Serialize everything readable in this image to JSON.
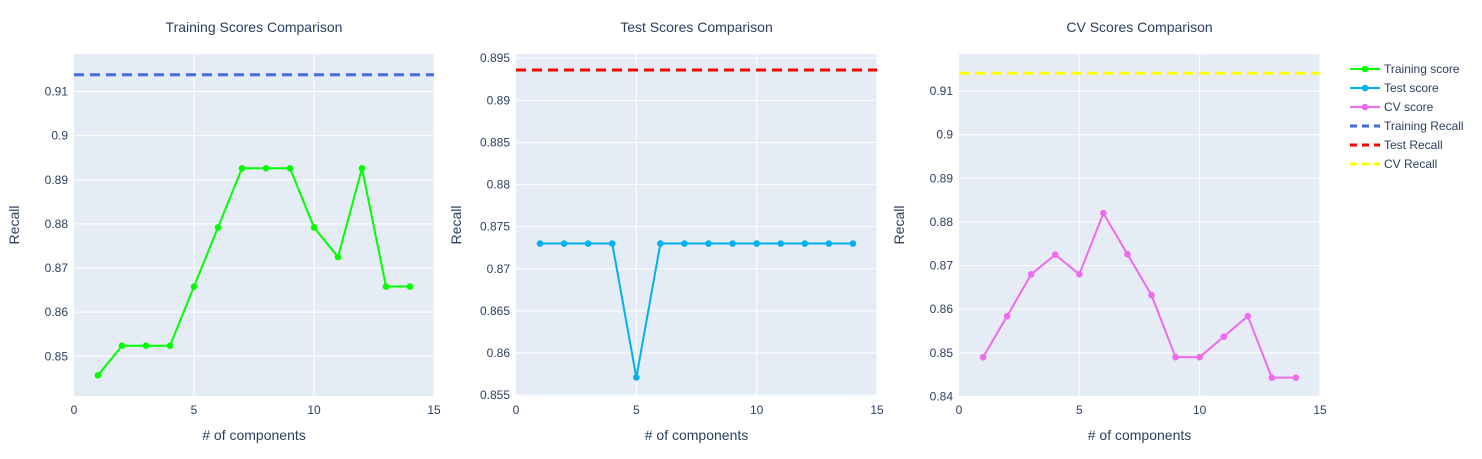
{
  "chart_data": [
    {
      "type": "line",
      "title": "Training Scores Comparison",
      "xlabel": "# of components",
      "ylabel": "Recall",
      "xlim": [
        0,
        15
      ],
      "ylim": [
        0.841,
        0.9185
      ],
      "x_ticks": [
        0,
        5,
        10,
        15
      ],
      "y_ticks": [
        0.85,
        0.86,
        0.87,
        0.88,
        0.89,
        0.9,
        0.91
      ],
      "y_tick_labels": [
        "0.85",
        "0.86",
        "0.87",
        "0.88",
        "0.89",
        "0.9",
        "0.91"
      ],
      "grid": true,
      "series": [
        {
          "name": "Training score",
          "color": "#00ff00",
          "mode": "lines+markers",
          "x": [
            1,
            2,
            3,
            4,
            5,
            6,
            7,
            8,
            9,
            10,
            11,
            12,
            13,
            14
          ],
          "y": [
            0.8457,
            0.8524,
            0.8524,
            0.8524,
            0.8658,
            0.8792,
            0.8926,
            0.8926,
            0.8926,
            0.8792,
            0.8725,
            0.8926,
            0.8658,
            0.8658
          ]
        }
      ],
      "reference": {
        "name": "Training Recall",
        "value": 0.9138,
        "color": "#4169e1",
        "dash": "dash"
      }
    },
    {
      "type": "line",
      "title": "Test Scores Comparison",
      "xlabel": "# of components",
      "ylabel": "Recall",
      "xlim": [
        0,
        15
      ],
      "ylim": [
        0.8549,
        0.8955
      ],
      "x_ticks": [
        0,
        5,
        10,
        15
      ],
      "y_ticks": [
        0.855,
        0.86,
        0.865,
        0.87,
        0.875,
        0.88,
        0.885,
        0.89,
        0.895
      ],
      "y_tick_labels": [
        "0.855",
        "0.86",
        "0.865",
        "0.87",
        "0.875",
        "0.88",
        "0.885",
        "0.89",
        "0.895"
      ],
      "grid": true,
      "series": [
        {
          "name": "Test score",
          "color": "#00b0f0",
          "mode": "lines+markers",
          "x": [
            1,
            2,
            3,
            4,
            5,
            6,
            7,
            8,
            9,
            10,
            11,
            12,
            13,
            14
          ],
          "y": [
            0.873,
            0.873,
            0.873,
            0.873,
            0.8571,
            0.873,
            0.873,
            0.873,
            0.873,
            0.873,
            0.873,
            0.873,
            0.873,
            0.873
          ]
        }
      ],
      "reference": {
        "name": "Test Recall",
        "value": 0.8936,
        "color": "#ff0000",
        "dash": "dash"
      }
    },
    {
      "type": "line",
      "title": "CV Scores Comparison",
      "xlabel": "# of components",
      "ylabel": "Recall",
      "xlim": [
        0,
        15
      ],
      "ylim": [
        0.8401,
        0.9185
      ],
      "x_ticks": [
        0,
        5,
        10,
        15
      ],
      "y_ticks": [
        0.84,
        0.85,
        0.86,
        0.87,
        0.88,
        0.89,
        0.9,
        0.91
      ],
      "y_tick_labels": [
        "0.84",
        "0.85",
        "0.86",
        "0.87",
        "0.88",
        "0.89",
        "0.9",
        "0.91"
      ],
      "grid": true,
      "series": [
        {
          "name": "CV score",
          "color": "#ee6aee",
          "mode": "lines+markers",
          "x": [
            1,
            2,
            3,
            4,
            5,
            6,
            7,
            8,
            9,
            10,
            11,
            12,
            13,
            14
          ],
          "y": [
            0.849,
            0.8584,
            0.868,
            0.8725,
            0.868,
            0.882,
            0.8726,
            0.8632,
            0.849,
            0.849,
            0.8537,
            0.8584,
            0.8443,
            0.8443
          ]
        }
      ],
      "reference": {
        "name": "CV Recall",
        "value": 0.9141,
        "color": "#ffff00",
        "dash": "dash"
      }
    }
  ],
  "legend": {
    "position": "right",
    "items": [
      {
        "label": "Training score",
        "color": "#00ff00",
        "style": "line-marker"
      },
      {
        "label": "Test score",
        "color": "#00b0f0",
        "style": "line-marker"
      },
      {
        "label": "CV score",
        "color": "#ee6aee",
        "style": "line-marker"
      },
      {
        "label": "Training Recall",
        "color": "#4169e1",
        "style": "dash"
      },
      {
        "label": "Test Recall",
        "color": "#ff0000",
        "style": "dash"
      },
      {
        "label": "CV Recall",
        "color": "#ffff00",
        "style": "dash"
      }
    ]
  },
  "colors": {
    "plot_background": "#e5ecf6",
    "grid": "#ffffff",
    "text": "#2a3f5f"
  }
}
